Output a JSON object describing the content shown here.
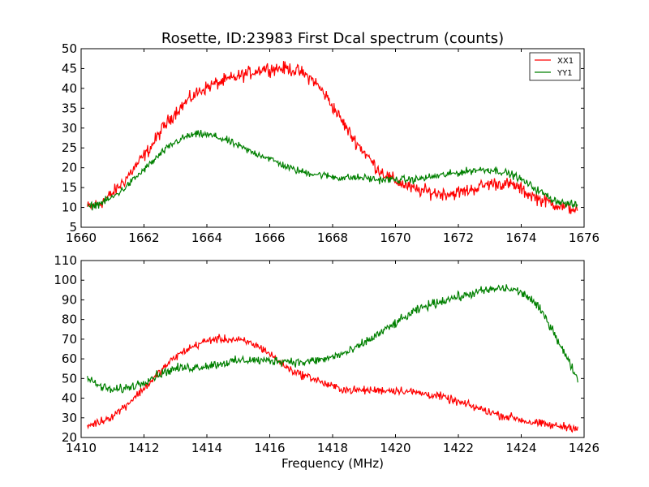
{
  "chart_data": [
    {
      "type": "line",
      "title": "Rosette, ID:23983 First Dcal spectrum (counts)",
      "xlabel": "",
      "ylabel": "",
      "xlim": [
        1660,
        1676
      ],
      "ylim": [
        5,
        50
      ],
      "xticks": [
        "1660",
        "1662",
        "1664",
        "1666",
        "1668",
        "1670",
        "1672",
        "1674",
        "1676"
      ],
      "yticks": [
        "5",
        "10",
        "15",
        "20",
        "25",
        "30",
        "35",
        "40",
        "45",
        "50"
      ],
      "legend": {
        "placement": "top-right",
        "entries": [
          "XX1",
          "YY1"
        ]
      },
      "grid": false,
      "series": [
        {
          "name": "XX1",
          "color": "#ff0000",
          "x": [
            1660.2,
            1660.6,
            1661.0,
            1661.4,
            1661.8,
            1662.2,
            1662.6,
            1663.0,
            1663.4,
            1663.8,
            1664.2,
            1664.6,
            1665.0,
            1665.4,
            1665.8,
            1666.2,
            1666.6,
            1667.0,
            1667.4,
            1667.8,
            1668.2,
            1668.6,
            1669.0,
            1669.4,
            1669.8,
            1670.2,
            1670.6,
            1671.0,
            1671.4,
            1671.8,
            1672.2,
            1672.6,
            1673.0,
            1673.4,
            1673.8,
            1674.2,
            1674.6,
            1675.0,
            1675.4,
            1675.8
          ],
          "y": [
            10,
            11,
            13.5,
            17,
            21,
            25,
            30,
            34,
            37,
            39.5,
            41,
            42,
            43,
            44,
            45,
            45,
            45,
            44,
            42,
            38,
            33,
            28,
            24,
            20,
            17.5,
            16,
            14.5,
            14,
            13.5,
            13.5,
            14,
            15,
            16,
            16,
            15.5,
            13.5,
            12,
            11,
            10,
            9.5
          ],
          "noise": 1.6
        },
        {
          "name": "YY1",
          "color": "#008000",
          "x": [
            1660.2,
            1660.6,
            1661.0,
            1661.4,
            1661.8,
            1662.2,
            1662.6,
            1663.0,
            1663.4,
            1663.8,
            1664.2,
            1664.6,
            1665.0,
            1665.4,
            1665.8,
            1666.2,
            1666.6,
            1667.0,
            1667.4,
            1667.8,
            1668.2,
            1668.6,
            1669.0,
            1669.4,
            1669.8,
            1670.2,
            1670.6,
            1671.0,
            1671.4,
            1671.8,
            1672.2,
            1672.6,
            1673.0,
            1673.4,
            1673.8,
            1674.2,
            1674.6,
            1675.0,
            1675.4,
            1675.8
          ],
          "y": [
            10,
            11,
            12.5,
            15,
            18,
            21,
            24,
            26.5,
            28,
            28.5,
            28,
            27,
            25.5,
            24,
            23,
            21.5,
            20,
            19,
            18.5,
            18,
            17.5,
            17.5,
            17.5,
            17,
            17,
            17,
            17,
            17.5,
            18,
            18.5,
            19,
            19.5,
            19.5,
            19,
            18,
            16,
            14,
            12,
            11,
            10.5
          ],
          "noise": 0.9
        }
      ]
    },
    {
      "type": "line",
      "title": "",
      "xlabel": "Frequency (MHz)",
      "ylabel": "",
      "xlim": [
        1410,
        1426
      ],
      "ylim": [
        20,
        110
      ],
      "xticks": [
        "1410",
        "1412",
        "1414",
        "1416",
        "1418",
        "1420",
        "1422",
        "1424",
        "1426"
      ],
      "yticks": [
        "20",
        "30",
        "40",
        "50",
        "60",
        "70",
        "80",
        "90",
        "100",
        "110"
      ],
      "grid": false,
      "series": [
        {
          "name": "XX1",
          "color": "#ff0000",
          "x": [
            1410.2,
            1410.6,
            1411.0,
            1411.4,
            1411.8,
            1412.2,
            1412.6,
            1413.0,
            1413.4,
            1413.8,
            1414.2,
            1414.6,
            1415.0,
            1415.4,
            1415.8,
            1416.2,
            1416.6,
            1417.0,
            1417.4,
            1417.8,
            1418.2,
            1418.6,
            1419.0,
            1419.4,
            1419.8,
            1420.2,
            1420.6,
            1421.0,
            1421.4,
            1421.8,
            1422.2,
            1422.6,
            1423.0,
            1423.4,
            1423.8,
            1424.2,
            1424.6,
            1425.0,
            1425.4,
            1425.8
          ],
          "y": [
            26,
            28,
            31,
            36,
            42,
            48,
            55,
            61,
            65,
            68,
            70,
            70,
            69.5,
            68,
            65,
            60,
            55,
            52,
            50,
            47,
            45,
            44,
            44,
            44,
            44,
            44,
            43,
            42,
            41,
            39,
            37,
            35,
            33,
            31,
            30,
            28,
            27,
            26,
            25.5,
            25
          ],
          "noise": 2.0
        },
        {
          "name": "YY1",
          "color": "#008000",
          "x": [
            1410.2,
            1410.6,
            1411.0,
            1411.4,
            1411.8,
            1412.2,
            1412.6,
            1413.0,
            1413.4,
            1413.8,
            1414.2,
            1414.6,
            1415.0,
            1415.4,
            1415.8,
            1416.2,
            1416.6,
            1417.0,
            1417.4,
            1417.8,
            1418.2,
            1418.6,
            1419.0,
            1419.4,
            1419.8,
            1420.2,
            1420.6,
            1421.0,
            1421.4,
            1421.8,
            1422.2,
            1422.6,
            1423.0,
            1423.4,
            1423.8,
            1424.2,
            1424.6,
            1425.0,
            1425.4,
            1425.8
          ],
          "y": [
            50,
            46,
            44,
            45,
            47,
            50,
            53,
            55,
            55.5,
            56,
            57,
            58,
            59,
            59.5,
            59,
            59,
            59,
            58,
            59,
            60,
            62,
            64,
            68,
            72,
            76,
            80,
            84,
            87,
            89,
            91,
            92,
            94,
            95,
            96,
            95,
            92,
            85,
            75,
            62,
            50
          ],
          "noise": 2.2
        }
      ]
    }
  ]
}
